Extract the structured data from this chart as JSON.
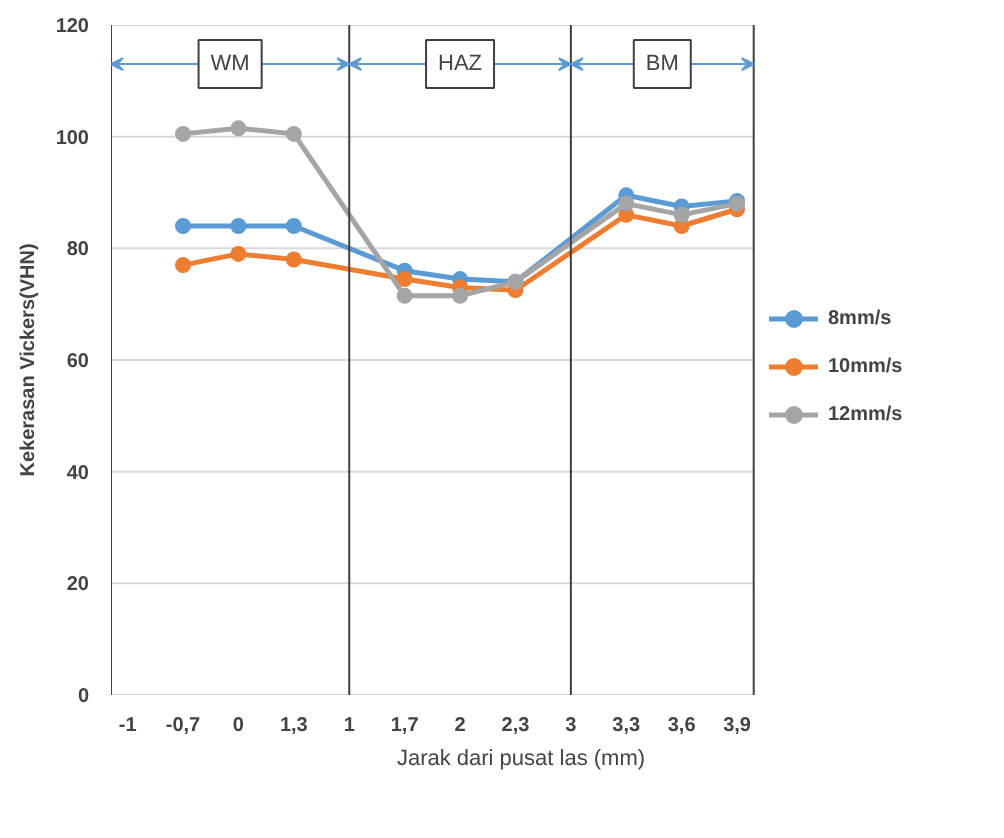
{
  "chart_data": {
    "type": "line",
    "xlabel": "Jarak dari pusat las (mm)",
    "ylabel": "Kekerasan Vickers(VHN)",
    "categories": [
      "-1",
      "-0,7",
      "0",
      "1,3",
      "1",
      "1,7",
      "2",
      "2,3",
      "3",
      "3,3",
      "3,6",
      "3,9"
    ],
    "series": [
      {
        "name": "8mm/s",
        "color": "#5b9bd5",
        "values": [
          null,
          84,
          84,
          84,
          null,
          76,
          74.5,
          74,
          null,
          89.5,
          87.5,
          88.5
        ]
      },
      {
        "name": "10mm/s",
        "color": "#ed7d31",
        "values": [
          null,
          77,
          79,
          78,
          null,
          74.5,
          73,
          72.5,
          null,
          86,
          84,
          87
        ]
      },
      {
        "name": "12mm/s",
        "color": "#a5a5a5",
        "values": [
          null,
          100.5,
          101.5,
          100.5,
          null,
          71.5,
          71.5,
          74,
          null,
          88,
          86,
          88
        ]
      }
    ],
    "ylim": [
      0,
      120
    ],
    "yticks": [
      0,
      20,
      40,
      60,
      80,
      100,
      120
    ],
    "grid": "y",
    "legend": "right",
    "marker": "circle",
    "line_style": "solid",
    "ref_lines": [
      {
        "axis": "x",
        "value": "1",
        "color": "#404040"
      },
      {
        "axis": "x",
        "value": "3",
        "color": "#404040"
      }
    ],
    "annotations": [
      {
        "text": "WM",
        "y": 113
      },
      {
        "text": "HAZ",
        "y": 113
      },
      {
        "text": "BM",
        "y": 113
      }
    ]
  }
}
